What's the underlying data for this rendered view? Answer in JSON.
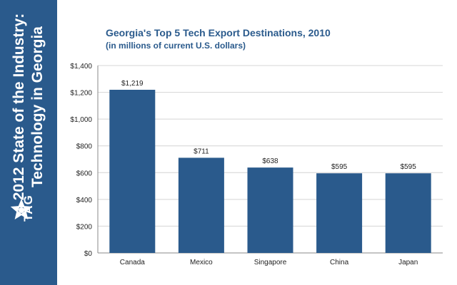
{
  "sidebar": {
    "title_line1": "2012 State of the Industry:",
    "title_line2": "Technology in Georgia",
    "logo_text": "TAG",
    "background": "#2a5a8c"
  },
  "chart_data": {
    "type": "bar",
    "title": "Georgia's Top 5 Tech Export Destinations, 2010",
    "subtitle": "(in millions of current U.S. dollars)",
    "categories": [
      "Canada",
      "Mexico",
      "Singapore",
      "China",
      "Japan"
    ],
    "values": [
      1219,
      711,
      638,
      595,
      595
    ],
    "data_labels": [
      "$1,219",
      "$711",
      "$638",
      "$595",
      "$595"
    ],
    "y_ticks": [
      0,
      200,
      400,
      600,
      800,
      1000,
      1200,
      1400
    ],
    "y_tick_labels": [
      "$0",
      "$200",
      "$400",
      "$600",
      "$800",
      "$1,000",
      "$1,200",
      "$1,400"
    ],
    "ylim": [
      0,
      1400
    ],
    "grid": true,
    "legend": "none",
    "bar_color": "#2a5a8c"
  }
}
